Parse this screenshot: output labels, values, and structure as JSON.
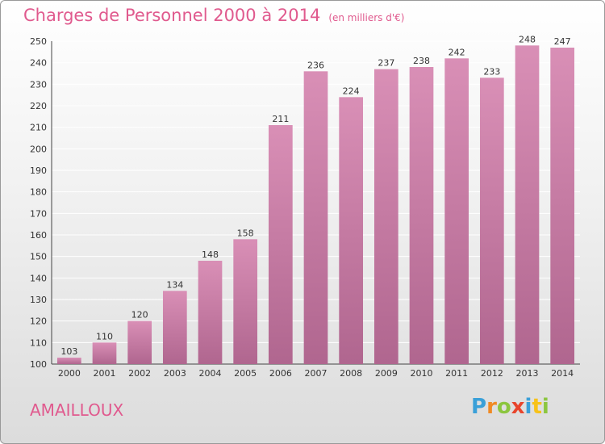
{
  "chart_data": {
    "type": "bar",
    "title": "Charges de Personnel 2000 à 2014",
    "subtitle": "(en milliers d'€)",
    "categories": [
      "2000",
      "2001",
      "2002",
      "2003",
      "2004",
      "2005",
      "2006",
      "2007",
      "2008",
      "2009",
      "2010",
      "2011",
      "2012",
      "2013",
      "2014"
    ],
    "values": [
      103,
      110,
      120,
      134,
      148,
      158,
      211,
      236,
      224,
      237,
      238,
      242,
      233,
      248,
      247
    ],
    "ylim": [
      100,
      250
    ],
    "yticks": [
      100,
      110,
      120,
      130,
      140,
      150,
      160,
      170,
      180,
      190,
      200,
      210,
      220,
      230,
      240,
      250
    ],
    "grid": true,
    "bar_color": "#d98fb6",
    "bar_color_dark": "#b0668f"
  },
  "commune": "AMAILLOUX",
  "logo": {
    "letters": [
      "P",
      "r",
      "o",
      "x",
      "i",
      "t",
      "i"
    ],
    "colors": [
      "#3aa0d8",
      "#f08a24",
      "#8cc63f",
      "#e8452c",
      "#3aa0d8",
      "#f7c21a",
      "#8cc63f"
    ]
  },
  "colors": {
    "title": "#e05a8e",
    "grid": "#ffffff"
  }
}
